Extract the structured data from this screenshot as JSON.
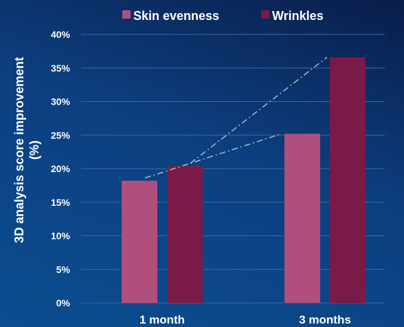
{
  "chart_data": {
    "type": "bar",
    "categories": [
      "1 month",
      "3 months"
    ],
    "series": [
      {
        "name": "Skin evenness",
        "values": [
          18.2,
          25.2
        ],
        "color": "#b04f7b"
      },
      {
        "name": "Wrinkles",
        "values": [
          20.4,
          36.6
        ],
        "color": "#7a1a47"
      }
    ],
    "ylabel_line1": "3D analysis score improvement",
    "ylabel_line2": "(%)",
    "ylim": [
      0,
      40
    ],
    "yticks": [
      "0%",
      "5%",
      "10%",
      "15%",
      "20%",
      "25%",
      "30%",
      "35%",
      "40%"
    ],
    "ytick_values": [
      0,
      5,
      10,
      15,
      20,
      25,
      30,
      35,
      40
    ],
    "grid": true,
    "legend_position": "top",
    "trend_lines": true,
    "colors": {
      "background_dark": "#0a1d4a",
      "background_light": "#0b4d8f",
      "gridline": "#3f6aa3",
      "trend_line": "#9fb8c9"
    }
  }
}
